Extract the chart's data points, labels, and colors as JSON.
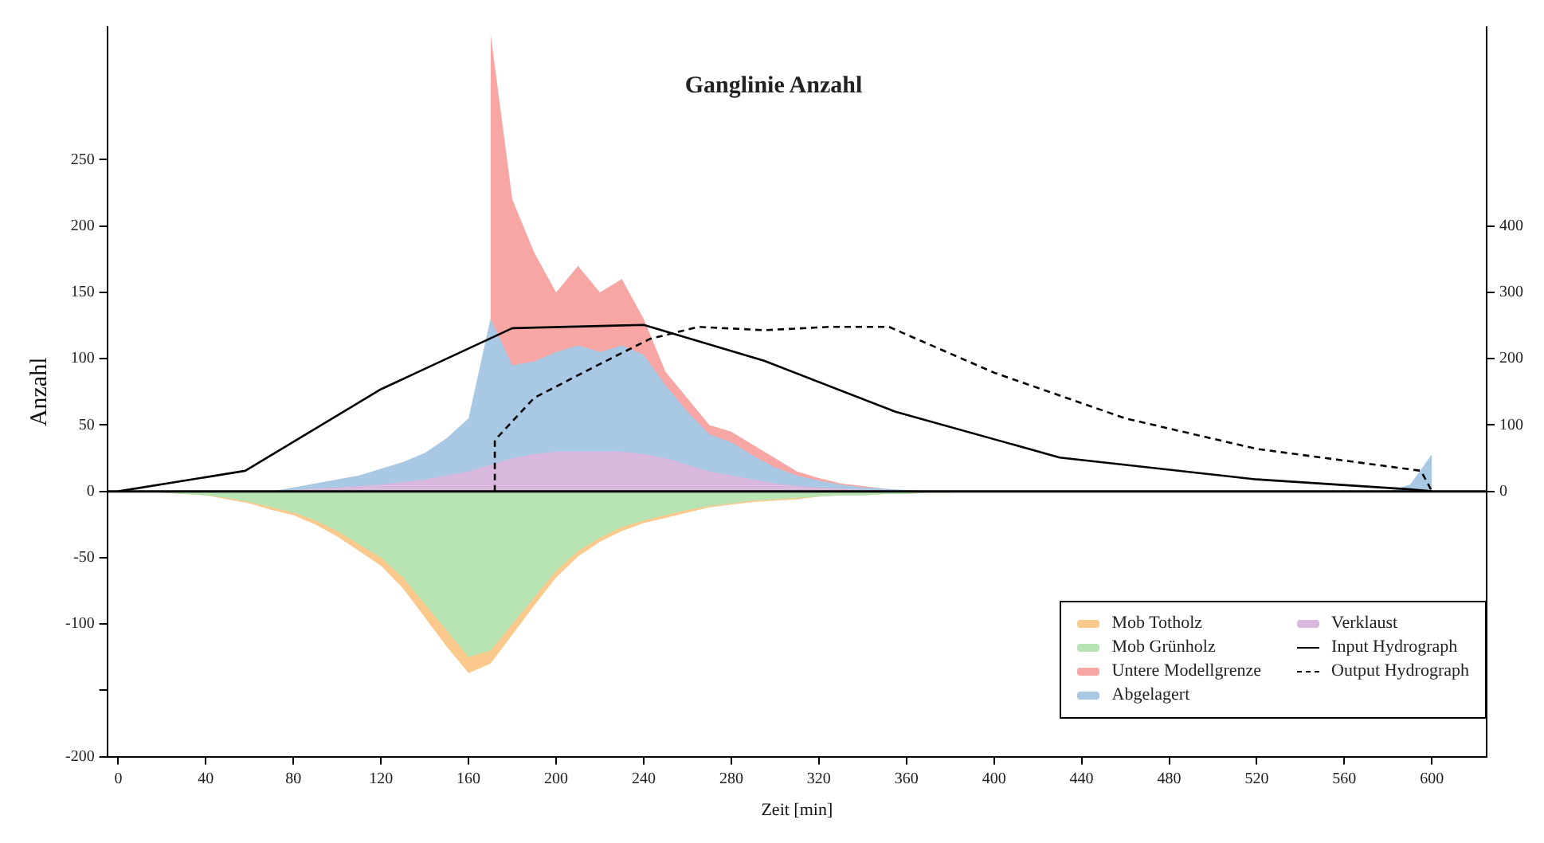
{
  "chart_data": {
    "type": "area",
    "title": "Ganglinie Anzahl",
    "xlabel": "Zeit [min]",
    "ylabel": "Anzahl",
    "x": [
      0,
      10,
      20,
      30,
      40,
      50,
      60,
      70,
      80,
      90,
      100,
      110,
      120,
      130,
      140,
      150,
      160,
      170,
      180,
      190,
      200,
      210,
      220,
      230,
      240,
      250,
      260,
      270,
      280,
      290,
      300,
      310,
      320,
      330,
      340,
      350,
      360,
      370,
      380,
      390,
      400,
      410,
      420,
      430,
      440,
      450,
      460,
      470,
      480,
      490,
      500,
      510,
      520,
      530,
      540,
      550,
      560,
      570,
      580,
      590,
      600
    ],
    "series": [
      {
        "name": "Mob Totholz",
        "color": "#fbc98c",
        "values": [
          0,
          0,
          -1,
          -2,
          -3,
          -6,
          -9,
          -14,
          -18,
          -25,
          -34,
          -45,
          -56,
          -73,
          -95,
          -117,
          -137,
          -130,
          -108,
          -86,
          -65,
          -49,
          -38,
          -30,
          -24,
          -20,
          -16,
          -12,
          -10,
          -8,
          -7,
          -6,
          -4,
          -3,
          -3,
          -2,
          -2,
          -1,
          -1,
          0,
          0,
          0,
          0,
          0,
          0,
          0,
          0,
          0,
          0,
          0,
          0,
          0,
          0,
          0,
          0,
          0,
          0,
          0,
          0,
          0,
          0
        ]
      },
      {
        "name": "Mob Grünholz",
        "color": "#b8e4b4",
        "values": [
          0,
          0,
          -1,
          -2,
          -3,
          -5,
          -8,
          -12,
          -16,
          -22,
          -30,
          -40,
          -50,
          -65,
          -85,
          -105,
          -125,
          -120,
          -100,
          -80,
          -60,
          -45,
          -35,
          -27,
          -22,
          -18,
          -14,
          -11,
          -9,
          -7,
          -6,
          -5,
          -4,
          -3,
          -3,
          -2,
          -2,
          -1,
          -1,
          0,
          0,
          0,
          0,
          0,
          0,
          0,
          0,
          0,
          0,
          0,
          0,
          0,
          0,
          0,
          0,
          0,
          0,
          0,
          0,
          0,
          0
        ]
      },
      {
        "name": "Untere Modellgrenze",
        "color": "#f7a6a4",
        "values": [
          null,
          null,
          null,
          null,
          null,
          null,
          null,
          null,
          null,
          null,
          null,
          null,
          null,
          null,
          null,
          null,
          null,
          346,
          220,
          180,
          150,
          170,
          150,
          160,
          130,
          90,
          70,
          50,
          45,
          35,
          25,
          15,
          10,
          6,
          4,
          2,
          null,
          null,
          null,
          null,
          null,
          null,
          null,
          null,
          null,
          null,
          null,
          null,
          null,
          null,
          null,
          null,
          null,
          null,
          null,
          null,
          null,
          null,
          null,
          null,
          null
        ]
      },
      {
        "name": "Abgelagert",
        "color": "#a9c8e4",
        "values": [
          0,
          0,
          0,
          0,
          0,
          0,
          0,
          0,
          3,
          6,
          9,
          12,
          17,
          22,
          29,
          40,
          55,
          130,
          95,
          98,
          105,
          110,
          105,
          110,
          103,
          80,
          60,
          43,
          37,
          27,
          18,
          12,
          8,
          5,
          3,
          2,
          1,
          0,
          0,
          0,
          0,
          0,
          0,
          0,
          0,
          0,
          0,
          0,
          0,
          0,
          0,
          0,
          0,
          0,
          0,
          0,
          0,
          0,
          0,
          5,
          28
        ]
      },
      {
        "name": "Verklaust",
        "color": "#d8b8dc",
        "values": [
          0,
          0,
          0,
          0,
          0,
          0,
          0,
          0,
          1,
          2,
          3,
          4,
          5,
          7,
          9,
          12,
          15,
          20,
          25,
          28,
          30,
          30,
          30,
          30,
          28,
          25,
          20,
          15,
          12,
          9,
          6,
          4,
          3,
          2,
          1,
          1,
          0,
          0,
          0,
          0,
          0,
          0,
          0,
          0,
          0,
          0,
          0,
          0,
          0,
          0,
          0,
          0,
          0,
          0,
          0,
          0,
          0,
          0,
          0,
          0,
          0
        ]
      },
      {
        "name": "Input Hydrograph",
        "type": "line",
        "axis": "y2",
        "color": "#000000",
        "line_style": "solid",
        "x": [
          0,
          58,
          120,
          180,
          240,
          295,
          355,
          430,
          520,
          590,
          600
        ],
        "values": [
          0,
          31,
          154,
          246,
          251,
          197,
          120,
          51,
          18,
          3,
          0
        ]
      },
      {
        "name": "Output Hydrograph",
        "type": "line",
        "axis": "y2",
        "color": "#000000",
        "line_style": "dashed",
        "x": [
          172,
          172,
          190,
          220,
          243,
          265,
          295,
          325,
          352,
          400,
          460,
          520,
          595,
          600
        ],
        "values": [
          0,
          77,
          141,
          192,
          230,
          248,
          243,
          248,
          248,
          179,
          110,
          64,
          31,
          0
        ]
      }
    ],
    "xlim": [
      -5,
      625
    ],
    "xticks": [
      0,
      40,
      80,
      120,
      160,
      200,
      240,
      280,
      320,
      360,
      400,
      440,
      480,
      520,
      560,
      600
    ],
    "ylim": [
      -200,
      350
    ],
    "yticks": [
      250,
      200,
      150,
      100,
      50,
      0,
      -50,
      -100,
      {
        "value": -150,
        "label": null
      },
      -200
    ],
    "y2lim": [
      -400,
      700
    ],
    "y2ticks": [
      0,
      100,
      200,
      300,
      400
    ],
    "ref_lines": [
      {
        "axis": "y",
        "value": 0,
        "color": "#000000"
      }
    ],
    "grid": false,
    "legend": "bottom right"
  }
}
